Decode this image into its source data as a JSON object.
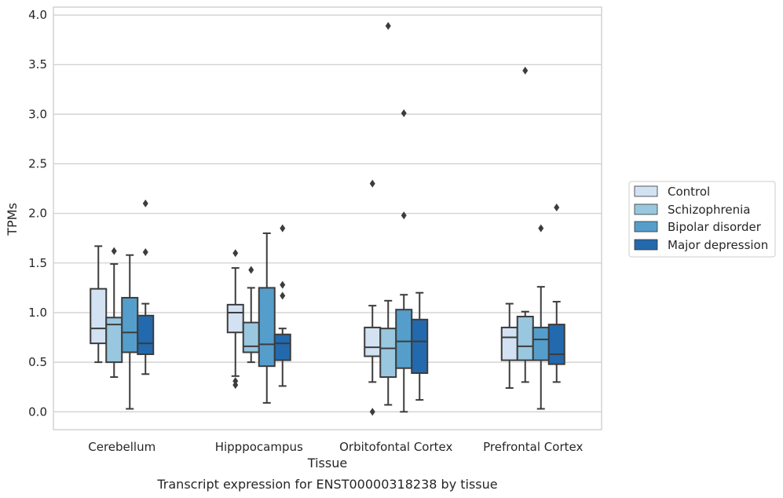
{
  "chart_data": {
    "type": "box",
    "title": "",
    "caption": "Transcript expression for ENST00000318238 by tissue",
    "xlabel": "Tissue",
    "ylabel": "TPMs",
    "ylim": [
      -0.18,
      4.08
    ],
    "yticks": [
      "0.0",
      "0.5",
      "1.0",
      "1.5",
      "2.0",
      "2.5",
      "3.0",
      "3.5",
      "4.0"
    ],
    "grid": "horizontal",
    "legend_position": "right",
    "categories": [
      "Cerebellum",
      "Hipppocampus",
      "Orbitofontal Cortex",
      "Prefrontal Cortex"
    ],
    "series": [
      {
        "name": "Control",
        "color": "#d2e2f2",
        "boxes": [
          {
            "whisker_low": 0.5,
            "q1": 0.69,
            "median": 0.84,
            "q3": 1.24,
            "whisker_high": 1.67,
            "outliers": []
          },
          {
            "whisker_low": 0.36,
            "q1": 0.8,
            "median": 1.0,
            "q3": 1.08,
            "whisker_high": 1.45,
            "outliers": [
              0.31,
              0.27,
              1.6
            ]
          },
          {
            "whisker_low": 0.3,
            "q1": 0.56,
            "median": 0.65,
            "q3": 0.85,
            "whisker_high": 1.07,
            "outliers": [
              0.0,
              2.3
            ]
          },
          {
            "whisker_low": 0.24,
            "q1": 0.52,
            "median": 0.75,
            "q3": 0.85,
            "whisker_high": 1.09,
            "outliers": []
          }
        ]
      },
      {
        "name": "Schizophrenia",
        "color": "#9ac7e0",
        "boxes": [
          {
            "whisker_low": 0.35,
            "q1": 0.5,
            "median": 0.88,
            "q3": 0.95,
            "whisker_high": 1.49,
            "outliers": [
              1.62
            ]
          },
          {
            "whisker_low": 0.5,
            "q1": 0.6,
            "median": 0.66,
            "q3": 0.9,
            "whisker_high": 1.25,
            "outliers": [
              1.43
            ]
          },
          {
            "whisker_low": 0.07,
            "q1": 0.35,
            "median": 0.64,
            "q3": 0.84,
            "whisker_high": 1.12,
            "outliers": [
              3.89
            ]
          },
          {
            "whisker_low": 0.3,
            "q1": 0.52,
            "median": 0.66,
            "q3": 0.96,
            "whisker_high": 1.01,
            "outliers": [
              3.44
            ]
          }
        ]
      },
      {
        "name": "Bipolar disorder",
        "color": "#559ecb",
        "boxes": [
          {
            "whisker_low": 0.03,
            "q1": 0.6,
            "median": 0.8,
            "q3": 1.15,
            "whisker_high": 1.58,
            "outliers": []
          },
          {
            "whisker_low": 0.09,
            "q1": 0.46,
            "median": 0.68,
            "q3": 1.25,
            "whisker_high": 1.8,
            "outliers": []
          },
          {
            "whisker_low": 0.0,
            "q1": 0.44,
            "median": 0.71,
            "q3": 1.03,
            "whisker_high": 1.18,
            "outliers": [
              3.01,
              1.98
            ]
          },
          {
            "whisker_low": 0.03,
            "q1": 0.52,
            "median": 0.73,
            "q3": 0.85,
            "whisker_high": 1.26,
            "outliers": [
              1.85
            ]
          }
        ]
      },
      {
        "name": "Major depression",
        "color": "#2369ad",
        "boxes": [
          {
            "whisker_low": 0.38,
            "q1": 0.58,
            "median": 0.69,
            "q3": 0.97,
            "whisker_high": 1.09,
            "outliers": [
              2.1,
              1.61
            ]
          },
          {
            "whisker_low": 0.26,
            "q1": 0.52,
            "median": 0.69,
            "q3": 0.78,
            "whisker_high": 0.84,
            "outliers": [
              1.85,
              1.28,
              1.17
            ]
          },
          {
            "whisker_low": 0.12,
            "q1": 0.39,
            "median": 0.71,
            "q3": 0.93,
            "whisker_high": 1.2,
            "outliers": []
          },
          {
            "whisker_low": 0.3,
            "q1": 0.48,
            "median": 0.58,
            "q3": 0.88,
            "whisker_high": 1.11,
            "outliers": [
              2.06
            ]
          }
        ]
      }
    ]
  }
}
